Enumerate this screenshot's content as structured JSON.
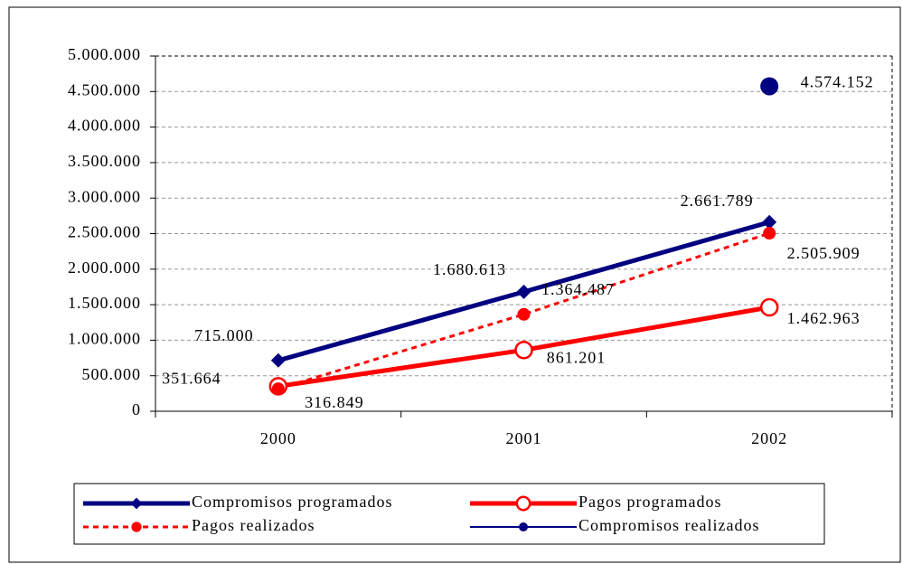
{
  "chart_data": {
    "type": "line",
    "categories": [
      "2000",
      "2001",
      "2002"
    ],
    "series": [
      {
        "name": "Compromisos programados",
        "color": "#000080",
        "marker": "diamond",
        "linestyle": "solid",
        "values": [
          715000,
          1680613,
          2661789
        ],
        "value_labels": [
          "715.000",
          "1.680.613",
          "2.661.789"
        ]
      },
      {
        "name": "Pagos programados",
        "color": "#ff0000",
        "marker": "open-circle",
        "linestyle": "solid",
        "values": [
          351664,
          861201,
          1462963
        ],
        "value_labels": [
          "351.664",
          "861.201",
          "1.462.963"
        ]
      },
      {
        "name": "Pagos realizados",
        "color": "#ff0000",
        "marker": "circle",
        "linestyle": "dashed",
        "values": [
          316849,
          1364487,
          2505909
        ],
        "value_labels": [
          "316.849",
          "1.364.487",
          "2.505.909"
        ]
      },
      {
        "name": "Compromisos realizados",
        "color": "#000080",
        "marker": "big-circle",
        "linestyle": "solid",
        "values": [
          null,
          null,
          4574152
        ],
        "value_labels": [
          null,
          null,
          "4.574.152"
        ]
      }
    ],
    "ylim": [
      0,
      5000000
    ],
    "yticks": [
      0,
      {
        "value": 500000,
        "label": "500.000"
      },
      {
        "value": 1000000,
        "label": "1.000.000"
      },
      {
        "value": 1500000,
        "label": "1.500.000"
      },
      {
        "value": 2000000,
        "label": "2.000.000"
      },
      {
        "value": 2500000,
        "label": "2.500.000"
      },
      {
        "value": 3000000,
        "label": "3.000.000"
      },
      {
        "value": 3500000,
        "label": "3.500.000"
      },
      {
        "value": 4000000,
        "label": "4.000.000"
      },
      {
        "value": 4500000,
        "label": "4.500.000"
      },
      {
        "value": 5000000,
        "label": "5.000.000"
      }
    ],
    "grid": true,
    "legend": "bottom"
  }
}
